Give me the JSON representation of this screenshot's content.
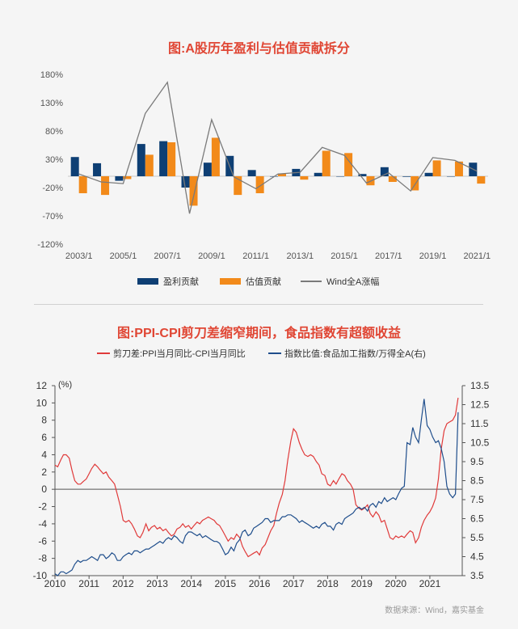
{
  "source_note": "数据来源：Wind，嘉实基金",
  "chart_data": [
    {
      "type": "bar",
      "title": "图:A股历年盈利与估值贡献拆分",
      "categories": [
        "2003",
        "2004",
        "2005",
        "2006",
        "2007",
        "2008",
        "2009",
        "2010",
        "2011",
        "2012",
        "2013",
        "2014",
        "2015",
        "2016",
        "2017",
        "2018",
        "2019",
        "2020",
        "2021"
      ],
      "x_tick_labels": [
        "2003/1",
        "2005/1",
        "2007/1",
        "2009/1",
        "2011/1",
        "2013/1",
        "2015/1",
        "2017/1",
        "2019/1",
        "2021/1"
      ],
      "x_tick_index": [
        0,
        2,
        4,
        6,
        8,
        10,
        12,
        14,
        16,
        18
      ],
      "y_ticks": [
        180,
        130,
        80,
        30,
        -20,
        -70,
        -120
      ],
      "y_tick_labels": [
        "180%",
        "130%",
        "80%",
        "30%",
        "-20%",
        "-70%",
        "-120%"
      ],
      "ylim": [
        -120,
        180
      ],
      "series": [
        {
          "name": "盈利贡献",
          "kind": "bar",
          "color": "#0e3f74",
          "values": [
            34,
            23,
            -8,
            57,
            62,
            -20,
            24,
            36,
            11,
            0,
            13,
            6,
            0,
            4,
            16,
            -1,
            6,
            0,
            24
          ]
        },
        {
          "name": "估值贡献",
          "kind": "bar",
          "color": "#f28a1a",
          "values": [
            -30,
            -33,
            -5,
            38,
            60,
            -52,
            68,
            -33,
            -30,
            5,
            -6,
            45,
            41,
            -16,
            -10,
            -25,
            28,
            26,
            -13
          ]
        },
        {
          "name": "Wind全A涨幅",
          "kind": "line",
          "color": "#7a7a7a",
          "values": [
            4,
            -10,
            -13,
            111,
            166,
            -66,
            100,
            -1,
            -22,
            4,
            7,
            51,
            37,
            -12,
            6,
            -26,
            33,
            28,
            9
          ]
        }
      ]
    },
    {
      "type": "line",
      "title": "图:PPI-CPI剪刀差缩窄期间，食品指数有超额收益",
      "y_unit_label": "(%)",
      "x_tick_labels": [
        "2010",
        "2011",
        "2012",
        "2013",
        "2014",
        "2015",
        "2016",
        "2017",
        "2018",
        "2019",
        "2020",
        "2021"
      ],
      "x_range": [
        2010,
        2021.95
      ],
      "left_ylim": [
        -10,
        12
      ],
      "left_ticks": [
        12,
        10,
        8,
        6,
        4,
        2,
        0,
        -2,
        -4,
        -6,
        -8,
        -10
      ],
      "right_ylim": [
        3.5,
        13.5
      ],
      "right_ticks": [
        "13.5",
        "12.5",
        "11.5",
        "10.5",
        "9.5",
        "8.5",
        "7.5",
        "6.5",
        "5.5",
        "4.5",
        "3.5"
      ],
      "series": [
        {
          "name": "剪刀差:PPI当月同比-CPI当月同比",
          "axis": "left",
          "color": "#e03a3a",
          "t": [
            2010,
            2010.08,
            2010.17,
            2010.25,
            2010.33,
            2010.42,
            2010.5,
            2010.58,
            2010.67,
            2010.75,
            2010.83,
            2010.92,
            2011,
            2011.08,
            2011.17,
            2011.25,
            2011.33,
            2011.42,
            2011.5,
            2011.58,
            2011.67,
            2011.75,
            2011.83,
            2011.92,
            2012,
            2012.08,
            2012.17,
            2012.25,
            2012.33,
            2012.42,
            2012.5,
            2012.58,
            2012.67,
            2012.75,
            2012.83,
            2012.92,
            2013,
            2013.08,
            2013.17,
            2013.25,
            2013.33,
            2013.42,
            2013.5,
            2013.58,
            2013.67,
            2013.75,
            2013.83,
            2013.92,
            2014,
            2014.08,
            2014.17,
            2014.25,
            2014.33,
            2014.42,
            2014.5,
            2014.58,
            2014.67,
            2014.75,
            2014.83,
            2014.92,
            2015,
            2015.08,
            2015.17,
            2015.25,
            2015.33,
            2015.42,
            2015.5,
            2015.58,
            2015.67,
            2015.75,
            2015.83,
            2015.92,
            2016,
            2016.08,
            2016.17,
            2016.25,
            2016.33,
            2016.42,
            2016.5,
            2016.58,
            2016.67,
            2016.75,
            2016.83,
            2016.92,
            2017,
            2017.08,
            2017.17,
            2017.25,
            2017.33,
            2017.42,
            2017.5,
            2017.58,
            2017.67,
            2017.75,
            2017.83,
            2017.92,
            2018,
            2018.08,
            2018.17,
            2018.25,
            2018.33,
            2018.42,
            2018.5,
            2018.58,
            2018.67,
            2018.75,
            2018.83,
            2018.92,
            2019,
            2019.08,
            2019.17,
            2019.25,
            2019.33,
            2019.42,
            2019.5,
            2019.58,
            2019.67,
            2019.75,
            2019.83,
            2019.92,
            2020,
            2020.08,
            2020.17,
            2020.25,
            2020.33,
            2020.42,
            2020.5,
            2020.58,
            2020.67,
            2020.75,
            2020.83,
            2020.92,
            2021,
            2021.08,
            2021.17,
            2021.25,
            2021.33,
            2021.42,
            2021.5,
            2021.58,
            2021.67,
            2021.75,
            2021.83,
            2021.92
          ],
          "v": [
            2.8,
            2.6,
            3.4,
            4.0,
            4.0,
            3.6,
            2.2,
            1.0,
            0.6,
            0.6,
            0.9,
            1.2,
            1.8,
            2.4,
            2.9,
            2.6,
            2.2,
            1.8,
            2.0,
            1.4,
            1.0,
            0.6,
            -0.6,
            -2.0,
            -3.6,
            -3.8,
            -3.6,
            -4.0,
            -4.6,
            -5.4,
            -5.6,
            -5.0,
            -4.0,
            -4.8,
            -4.4,
            -4.2,
            -4.6,
            -4.4,
            -4.8,
            -4.6,
            -5.0,
            -5.4,
            -5.2,
            -4.6,
            -4.4,
            -4.0,
            -4.4,
            -4.2,
            -4.6,
            -4.2,
            -3.8,
            -4.0,
            -3.6,
            -3.4,
            -3.2,
            -3.4,
            -3.6,
            -4.0,
            -4.2,
            -4.8,
            -5.4,
            -6.0,
            -5.6,
            -5.8,
            -5.2,
            -5.6,
            -6.6,
            -7.2,
            -7.8,
            -7.6,
            -7.4,
            -7.2,
            -7.6,
            -6.8,
            -6.4,
            -5.6,
            -4.8,
            -4.2,
            -2.8,
            -1.6,
            -0.6,
            1.0,
            3.4,
            5.6,
            7.0,
            6.6,
            5.4,
            4.6,
            4.0,
            3.8,
            4.0,
            3.8,
            3.2,
            2.8,
            1.8,
            1.6,
            0.6,
            0.4,
            1.0,
            0.6,
            1.2,
            1.8,
            1.6,
            1.0,
            0.6,
            0.0,
            -1.8,
            -2.2,
            -2.4,
            -2.2,
            -1.8,
            -2.8,
            -3.2,
            -2.6,
            -3.0,
            -3.8,
            -3.6,
            -4.6,
            -5.6,
            -5.8,
            -5.4,
            -5.6,
            -5.4,
            -5.6,
            -5.2,
            -4.8,
            -5.0,
            -6.2,
            -5.6,
            -4.4,
            -3.6,
            -3.0,
            -2.6,
            -2.0,
            -1.0,
            1.2,
            4.6,
            6.8,
            7.6,
            7.8,
            8.0,
            8.6,
            10.6
          ]
        },
        {
          "name": "指数比值:食品加工指数/万得全A(右)",
          "axis": "right",
          "color": "#1f4e8c",
          "t": [
            2010,
            2010.08,
            2010.17,
            2010.25,
            2010.33,
            2010.42,
            2010.5,
            2010.58,
            2010.67,
            2010.75,
            2010.83,
            2010.92,
            2011,
            2011.08,
            2011.17,
            2011.25,
            2011.33,
            2011.42,
            2011.5,
            2011.58,
            2011.67,
            2011.75,
            2011.83,
            2011.92,
            2012,
            2012.08,
            2012.17,
            2012.25,
            2012.33,
            2012.42,
            2012.5,
            2012.58,
            2012.67,
            2012.75,
            2012.83,
            2012.92,
            2013,
            2013.08,
            2013.17,
            2013.25,
            2013.33,
            2013.42,
            2013.5,
            2013.58,
            2013.67,
            2013.75,
            2013.83,
            2013.92,
            2014,
            2014.08,
            2014.17,
            2014.25,
            2014.33,
            2014.42,
            2014.5,
            2014.58,
            2014.67,
            2014.75,
            2014.83,
            2014.92,
            2015,
            2015.08,
            2015.17,
            2015.25,
            2015.33,
            2015.42,
            2015.5,
            2015.58,
            2015.67,
            2015.75,
            2015.83,
            2015.92,
            2016,
            2016.08,
            2016.17,
            2016.25,
            2016.33,
            2016.42,
            2016.5,
            2016.58,
            2016.67,
            2016.75,
            2016.83,
            2016.92,
            2017,
            2017.08,
            2017.17,
            2017.25,
            2017.33,
            2017.42,
            2017.5,
            2017.58,
            2017.67,
            2017.75,
            2017.83,
            2017.92,
            2018,
            2018.08,
            2018.17,
            2018.25,
            2018.33,
            2018.42,
            2018.5,
            2018.58,
            2018.67,
            2018.75,
            2018.83,
            2018.92,
            2019,
            2019.08,
            2019.17,
            2019.25,
            2019.33,
            2019.42,
            2019.5,
            2019.58,
            2019.67,
            2019.75,
            2019.83,
            2019.92,
            2020,
            2020.08,
            2020.17,
            2020.25,
            2020.33,
            2020.42,
            2020.5,
            2020.58,
            2020.67,
            2020.75,
            2020.83,
            2020.92,
            2021,
            2021.08,
            2021.17,
            2021.25,
            2021.33,
            2021.42,
            2021.5,
            2021.58,
            2021.67,
            2021.75,
            2021.83,
            2021.92
          ],
          "v": [
            3.6,
            3.5,
            3.7,
            3.7,
            3.6,
            3.7,
            3.8,
            4.1,
            4.3,
            4.2,
            4.3,
            4.3,
            4.4,
            4.5,
            4.4,
            4.3,
            4.6,
            4.6,
            4.4,
            4.5,
            4.7,
            4.6,
            4.3,
            4.3,
            4.5,
            4.6,
            4.7,
            4.6,
            4.8,
            4.8,
            4.7,
            4.8,
            4.9,
            4.9,
            5.0,
            5.1,
            5.2,
            5.3,
            5.2,
            5.4,
            5.5,
            5.4,
            5.6,
            5.5,
            5.3,
            5.2,
            5.6,
            5.8,
            5.8,
            5.7,
            5.6,
            5.7,
            5.5,
            5.6,
            5.5,
            5.4,
            5.3,
            5.3,
            5.2,
            4.9,
            4.6,
            4.7,
            5.0,
            4.8,
            5.2,
            5.4,
            5.8,
            5.9,
            5.6,
            5.7,
            6.0,
            6.1,
            6.2,
            6.3,
            6.5,
            6.5,
            6.3,
            6.4,
            6.4,
            6.4,
            6.6,
            6.6,
            6.7,
            6.7,
            6.6,
            6.5,
            6.3,
            6.4,
            6.3,
            6.2,
            6.1,
            6.0,
            6.1,
            6.0,
            6.2,
            6.3,
            6.1,
            6.1,
            5.9,
            6.2,
            6.3,
            6.2,
            6.5,
            6.6,
            6.7,
            6.8,
            7.0,
            7.1,
            7.0,
            7.1,
            6.9,
            7.2,
            7.3,
            7.1,
            7.4,
            7.3,
            7.6,
            7.4,
            7.5,
            7.6,
            7.5,
            7.8,
            8.1,
            8.2,
            10.5,
            10.4,
            11.3,
            10.8,
            10.5,
            11.7,
            12.8,
            11.4,
            11.2,
            10.8,
            10.5,
            10.6,
            10.2,
            9.5,
            8.2,
            7.8,
            7.6,
            7.8,
            12.1
          ]
        }
      ]
    }
  ]
}
